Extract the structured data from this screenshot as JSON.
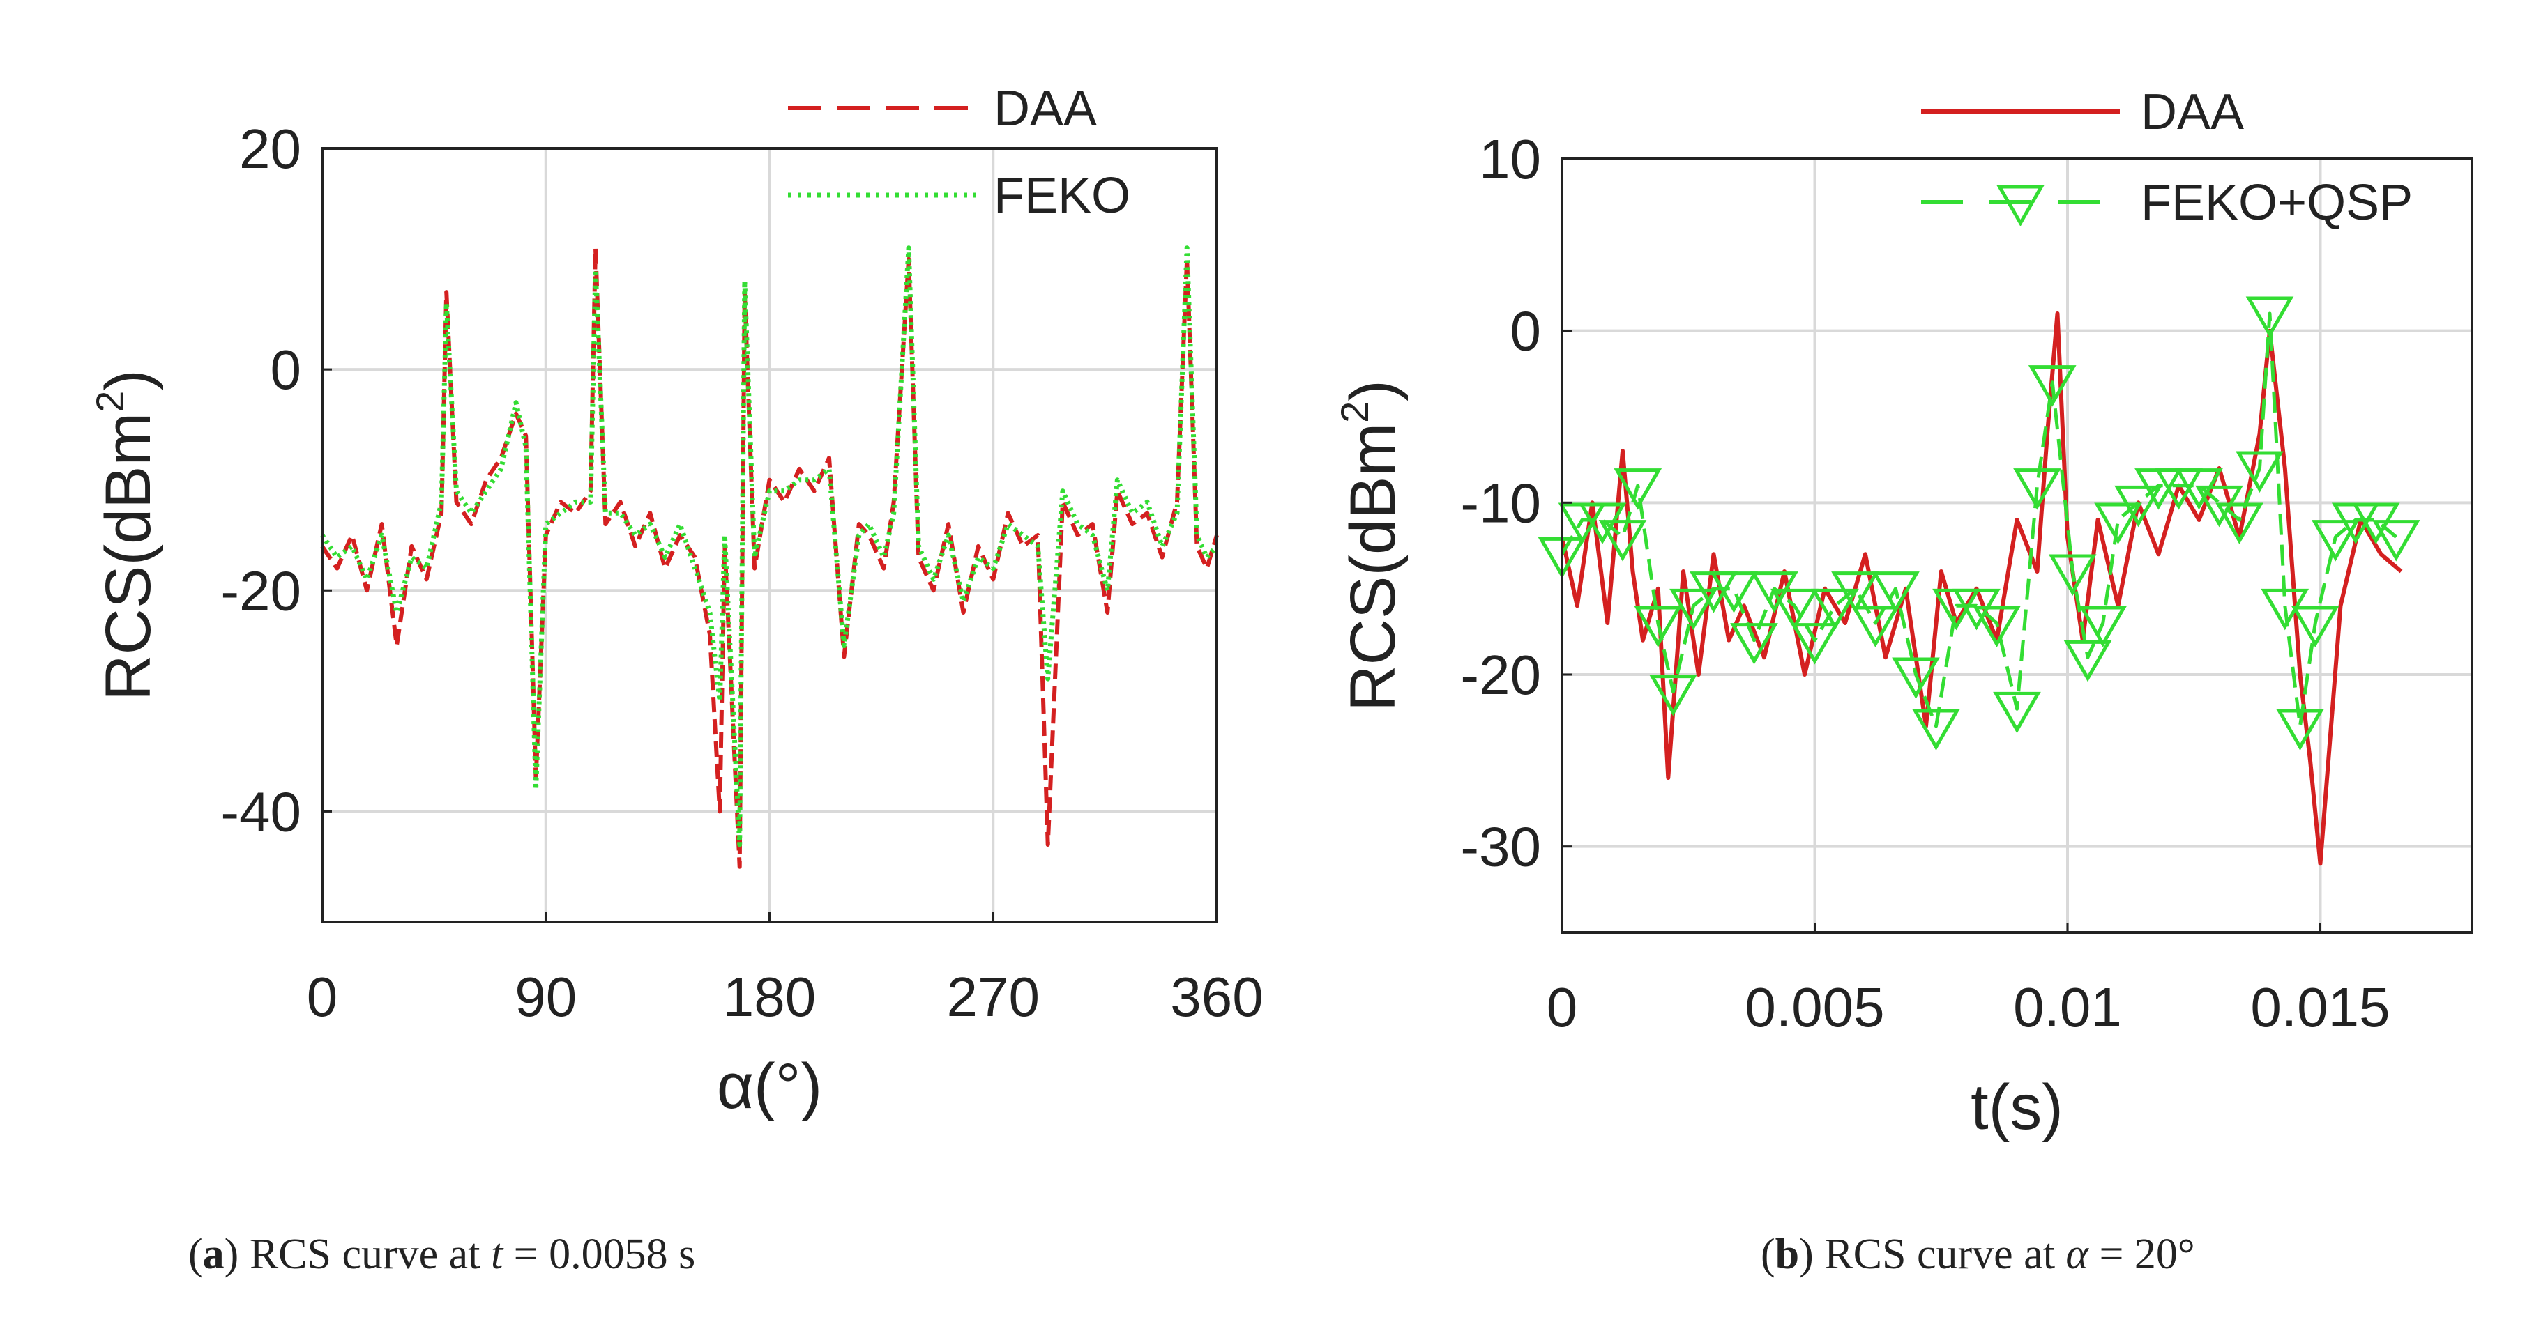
{
  "colors": {
    "daa": "#d42020",
    "feko": "#33dd33",
    "grid": "#d9d9d9",
    "axis": "#222222"
  },
  "chart_data": [
    {
      "type": "line",
      "panel": "a",
      "xlabel": "α(°)",
      "ylabel_main": "RCS(dBm",
      "ylabel_sup": "2",
      "ylabel_tail": ")",
      "xlim": [
        0,
        360
      ],
      "ylim": [
        -50,
        20
      ],
      "xticks": [
        0,
        90,
        180,
        270,
        360
      ],
      "xtick_labels": [
        "0",
        "90",
        "180",
        "270",
        "360"
      ],
      "yticks": [
        -40,
        -20,
        0,
        20
      ],
      "ytick_labels": [
        "-40",
        "-20",
        "0",
        "20"
      ],
      "grid": true,
      "legend_position": "top-right",
      "caption_letter": "a",
      "caption_prefix": "RCS curve at ",
      "caption_var": "t",
      "caption_suffix": " = 0.0058 s",
      "series": [
        {
          "name": "DAA",
          "style": "dashed",
          "color": "#d42020",
          "x": [
            0,
            6,
            12,
            18,
            24,
            30,
            36,
            42,
            48,
            50,
            54,
            60,
            66,
            72,
            78,
            82,
            86,
            90,
            96,
            102,
            108,
            110,
            114,
            120,
            126,
            132,
            138,
            144,
            150,
            156,
            160,
            162,
            168,
            170,
            174,
            180,
            186,
            192,
            198,
            204,
            210,
            216,
            220,
            226,
            230,
            236,
            240,
            246,
            252,
            258,
            264,
            270,
            276,
            282,
            288,
            292,
            298,
            304,
            310,
            316,
            320,
            326,
            332,
            338,
            344,
            348,
            352,
            356,
            360
          ],
          "y": [
            -16,
            -18,
            -15,
            -20,
            -14,
            -25,
            -16,
            -19,
            -13,
            7,
            -12,
            -14,
            -10,
            -8,
            -4,
            -6,
            -37,
            -15,
            -12,
            -13,
            -11,
            11,
            -14,
            -12,
            -16,
            -13,
            -18,
            -15,
            -17,
            -24,
            -40,
            -16,
            -45,
            7,
            -18,
            -10,
            -12,
            -9,
            -11,
            -8,
            -26,
            -14,
            -15,
            -18,
            -12,
            10,
            -17,
            -20,
            -14,
            -22,
            -16,
            -19,
            -13,
            -16,
            -15,
            -43,
            -12,
            -15,
            -14,
            -22,
            -11,
            -14,
            -13,
            -17,
            -12,
            10,
            -16,
            -18,
            -15
          ]
        },
        {
          "name": "FEKO",
          "style": "dotted",
          "color": "#33dd33",
          "x": [
            0,
            6,
            12,
            18,
            24,
            30,
            36,
            42,
            48,
            50,
            54,
            60,
            66,
            72,
            78,
            82,
            86,
            90,
            96,
            102,
            108,
            110,
            114,
            120,
            126,
            132,
            138,
            144,
            150,
            156,
            160,
            162,
            168,
            170,
            174,
            180,
            186,
            192,
            198,
            204,
            210,
            216,
            220,
            226,
            230,
            236,
            240,
            246,
            252,
            258,
            264,
            270,
            276,
            282,
            288,
            292,
            298,
            304,
            310,
            316,
            320,
            326,
            332,
            338,
            344,
            348,
            352,
            356,
            360
          ],
          "y": [
            -15,
            -17,
            -16,
            -19,
            -15,
            -22,
            -17,
            -18,
            -12,
            6,
            -11,
            -13,
            -11,
            -9,
            -3,
            -7,
            -38,
            -14,
            -13,
            -12,
            -12,
            9,
            -13,
            -13,
            -15,
            -14,
            -17,
            -14,
            -18,
            -22,
            -30,
            -15,
            -43,
            8,
            -17,
            -11,
            -11,
            -10,
            -10,
            -9,
            -25,
            -15,
            -14,
            -17,
            -13,
            11,
            -16,
            -19,
            -15,
            -21,
            -17,
            -18,
            -14,
            -15,
            -16,
            -28,
            -11,
            -14,
            -15,
            -20,
            -10,
            -13,
            -12,
            -16,
            -13,
            11,
            -15,
            -17,
            -16
          ]
        }
      ]
    },
    {
      "type": "line",
      "panel": "b",
      "xlabel": "t(s)",
      "ylabel_main": "RCS(dBm",
      "ylabel_sup": "2",
      "ylabel_tail": ")",
      "xlim": [
        0,
        0.018
      ],
      "ylim": [
        -35,
        10
      ],
      "xticks": [
        0,
        0.005,
        0.01,
        0.015
      ],
      "xtick_labels": [
        "0",
        "0.005",
        "0.01",
        "0.015"
      ],
      "yticks": [
        -30,
        -20,
        -10,
        0,
        10
      ],
      "ytick_labels": [
        "-30",
        "-20",
        "-10",
        "0",
        "10"
      ],
      "grid": true,
      "legend_position": "top-right",
      "caption_letter": "b",
      "caption_prefix": "RCS curve at ",
      "caption_var": "α",
      "caption_suffix": " = 20°",
      "series": [
        {
          "name": "DAA",
          "style": "solid",
          "color": "#d42020",
          "x": [
            0,
            0.0003,
            0.0006,
            0.0009,
            0.0012,
            0.0014,
            0.0016,
            0.0019,
            0.0021,
            0.0024,
            0.0027,
            0.003,
            0.0033,
            0.0036,
            0.004,
            0.0044,
            0.0048,
            0.0052,
            0.0056,
            0.006,
            0.0064,
            0.0068,
            0.0072,
            0.0075,
            0.0078,
            0.0082,
            0.0086,
            0.009,
            0.0094,
            0.0096,
            0.0098,
            0.01,
            0.0103,
            0.0106,
            0.011,
            0.0114,
            0.0118,
            0.0122,
            0.0126,
            0.013,
            0.0134,
            0.0138,
            0.014,
            0.0143,
            0.0146,
            0.0148,
            0.015,
            0.0154,
            0.0158,
            0.0162,
            0.0166
          ],
          "y": [
            -12,
            -16,
            -10,
            -17,
            -7,
            -14,
            -18,
            -15,
            -26,
            -14,
            -20,
            -13,
            -18,
            -16,
            -19,
            -14,
            -20,
            -15,
            -17,
            -13,
            -19,
            -15,
            -23,
            -14,
            -17,
            -15,
            -18,
            -11,
            -14,
            -6,
            1,
            -12,
            -18,
            -11,
            -16,
            -10,
            -13,
            -9,
            -11,
            -8,
            -12,
            -6,
            0,
            -8,
            -20,
            -25,
            -31,
            -16,
            -11,
            -13,
            -14
          ]
        },
        {
          "name": "FEKO+QSP",
          "style": "dashed-triangle",
          "color": "#33dd33",
          "x": [
            0,
            0.0004,
            0.0008,
            0.0012,
            0.0015,
            0.0019,
            0.0022,
            0.0026,
            0.003,
            0.0034,
            0.0038,
            0.0042,
            0.0046,
            0.005,
            0.0054,
            0.0058,
            0.0062,
            0.0066,
            0.007,
            0.0074,
            0.0078,
            0.0082,
            0.0086,
            0.009,
            0.0094,
            0.0097,
            0.0101,
            0.0104,
            0.0107,
            0.011,
            0.0114,
            0.0118,
            0.0122,
            0.0126,
            0.013,
            0.0134,
            0.0138,
            0.014,
            0.0143,
            0.0146,
            0.0149,
            0.0153,
            0.0157,
            0.0161,
            0.0165
          ],
          "y": [
            -13,
            -11,
            -11,
            -12,
            -9,
            -17,
            -21,
            -16,
            -15,
            -15,
            -18,
            -15,
            -16,
            -18,
            -16,
            -15,
            -17,
            -15,
            -20,
            -23,
            -16,
            -16,
            -17,
            -22,
            -9,
            -3,
            -14,
            -19,
            -17,
            -11,
            -10,
            -9,
            -9,
            -9,
            -10,
            -11,
            -8,
            1,
            -16,
            -23,
            -17,
            -12,
            -11,
            -11,
            -12
          ]
        }
      ]
    }
  ]
}
